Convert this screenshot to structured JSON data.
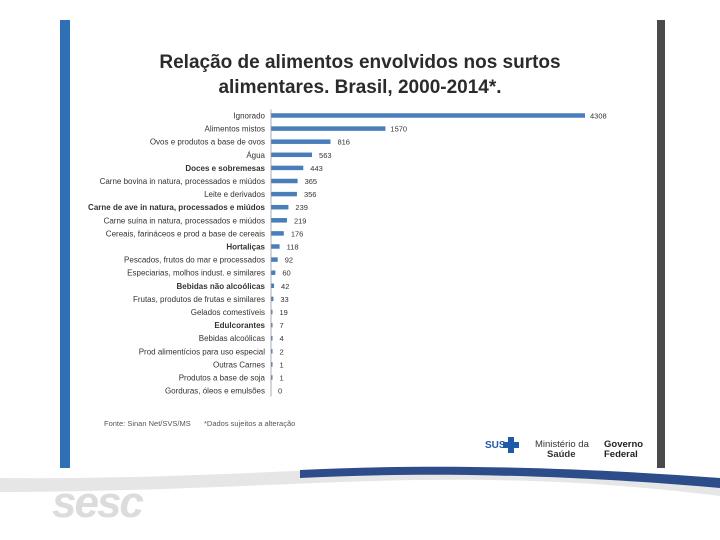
{
  "slide": {
    "title_line1": "Relação de alimentos envolvidos nos surtos",
    "title_line2": "alimentares. Brasil, 2000-2014*.",
    "source_note": "Fonte: Sinan Net/SVS/MS",
    "data_note": "*Dados sujeitos a alteração",
    "ministry_line1": "Ministério da",
    "ministry_line2": "Saúde",
    "government_line1": "Governo",
    "government_line2": "Federal",
    "sus_label": "SUS",
    "brand_logo": "sesc",
    "colors": {
      "bar": "#4a7ebb",
      "accent_left": "#2f6fb3",
      "accent_right": "#4a4a4a",
      "sus_blue": "#1e5aa8",
      "brand_gray": "#dcdcdc"
    }
  },
  "chart_data": {
    "type": "bar",
    "orientation": "horizontal",
    "title": "Relação de alimentos envolvidos nos surtos alimentares. Brasil, 2000-2014*.",
    "categories": [
      "Ignorado",
      "Alimentos mistos",
      "Ovos e produtos a base de ovos",
      "Água",
      "Doces e sobremesas",
      "Carne bovina in natura, processados e miúdos",
      "Leite e derivados",
      "Carne de ave in natura, processados e miúdos",
      "Carne suína in natura, processados e miúdos",
      "Cereais, farináceos e prod a base de cereais",
      "Hortaliças",
      "Pescados, frutos do mar e processados",
      "Especiarias, molhos indust. e similares",
      "Bebidas não alcoólicas",
      "Frutas, produtos de frutas e similares",
      "Gelados comestíveis",
      "Edulcorantes",
      "Bebidas alcoólicas",
      "Prod alimentícios para uso especial",
      "Outras Carnes",
      "Produtos a base de soja",
      "Gorduras, óleos e emulsões"
    ],
    "values": [
      4308,
      1570,
      816,
      563,
      443,
      365,
      356,
      239,
      219,
      176,
      118,
      92,
      60,
      42,
      33,
      19,
      7,
      4,
      2,
      1,
      1,
      0
    ],
    "bold_categories": [
      4,
      7,
      10,
      13,
      16
    ],
    "xlim": [
      0,
      4308
    ],
    "grid": false,
    "legend": "none"
  }
}
